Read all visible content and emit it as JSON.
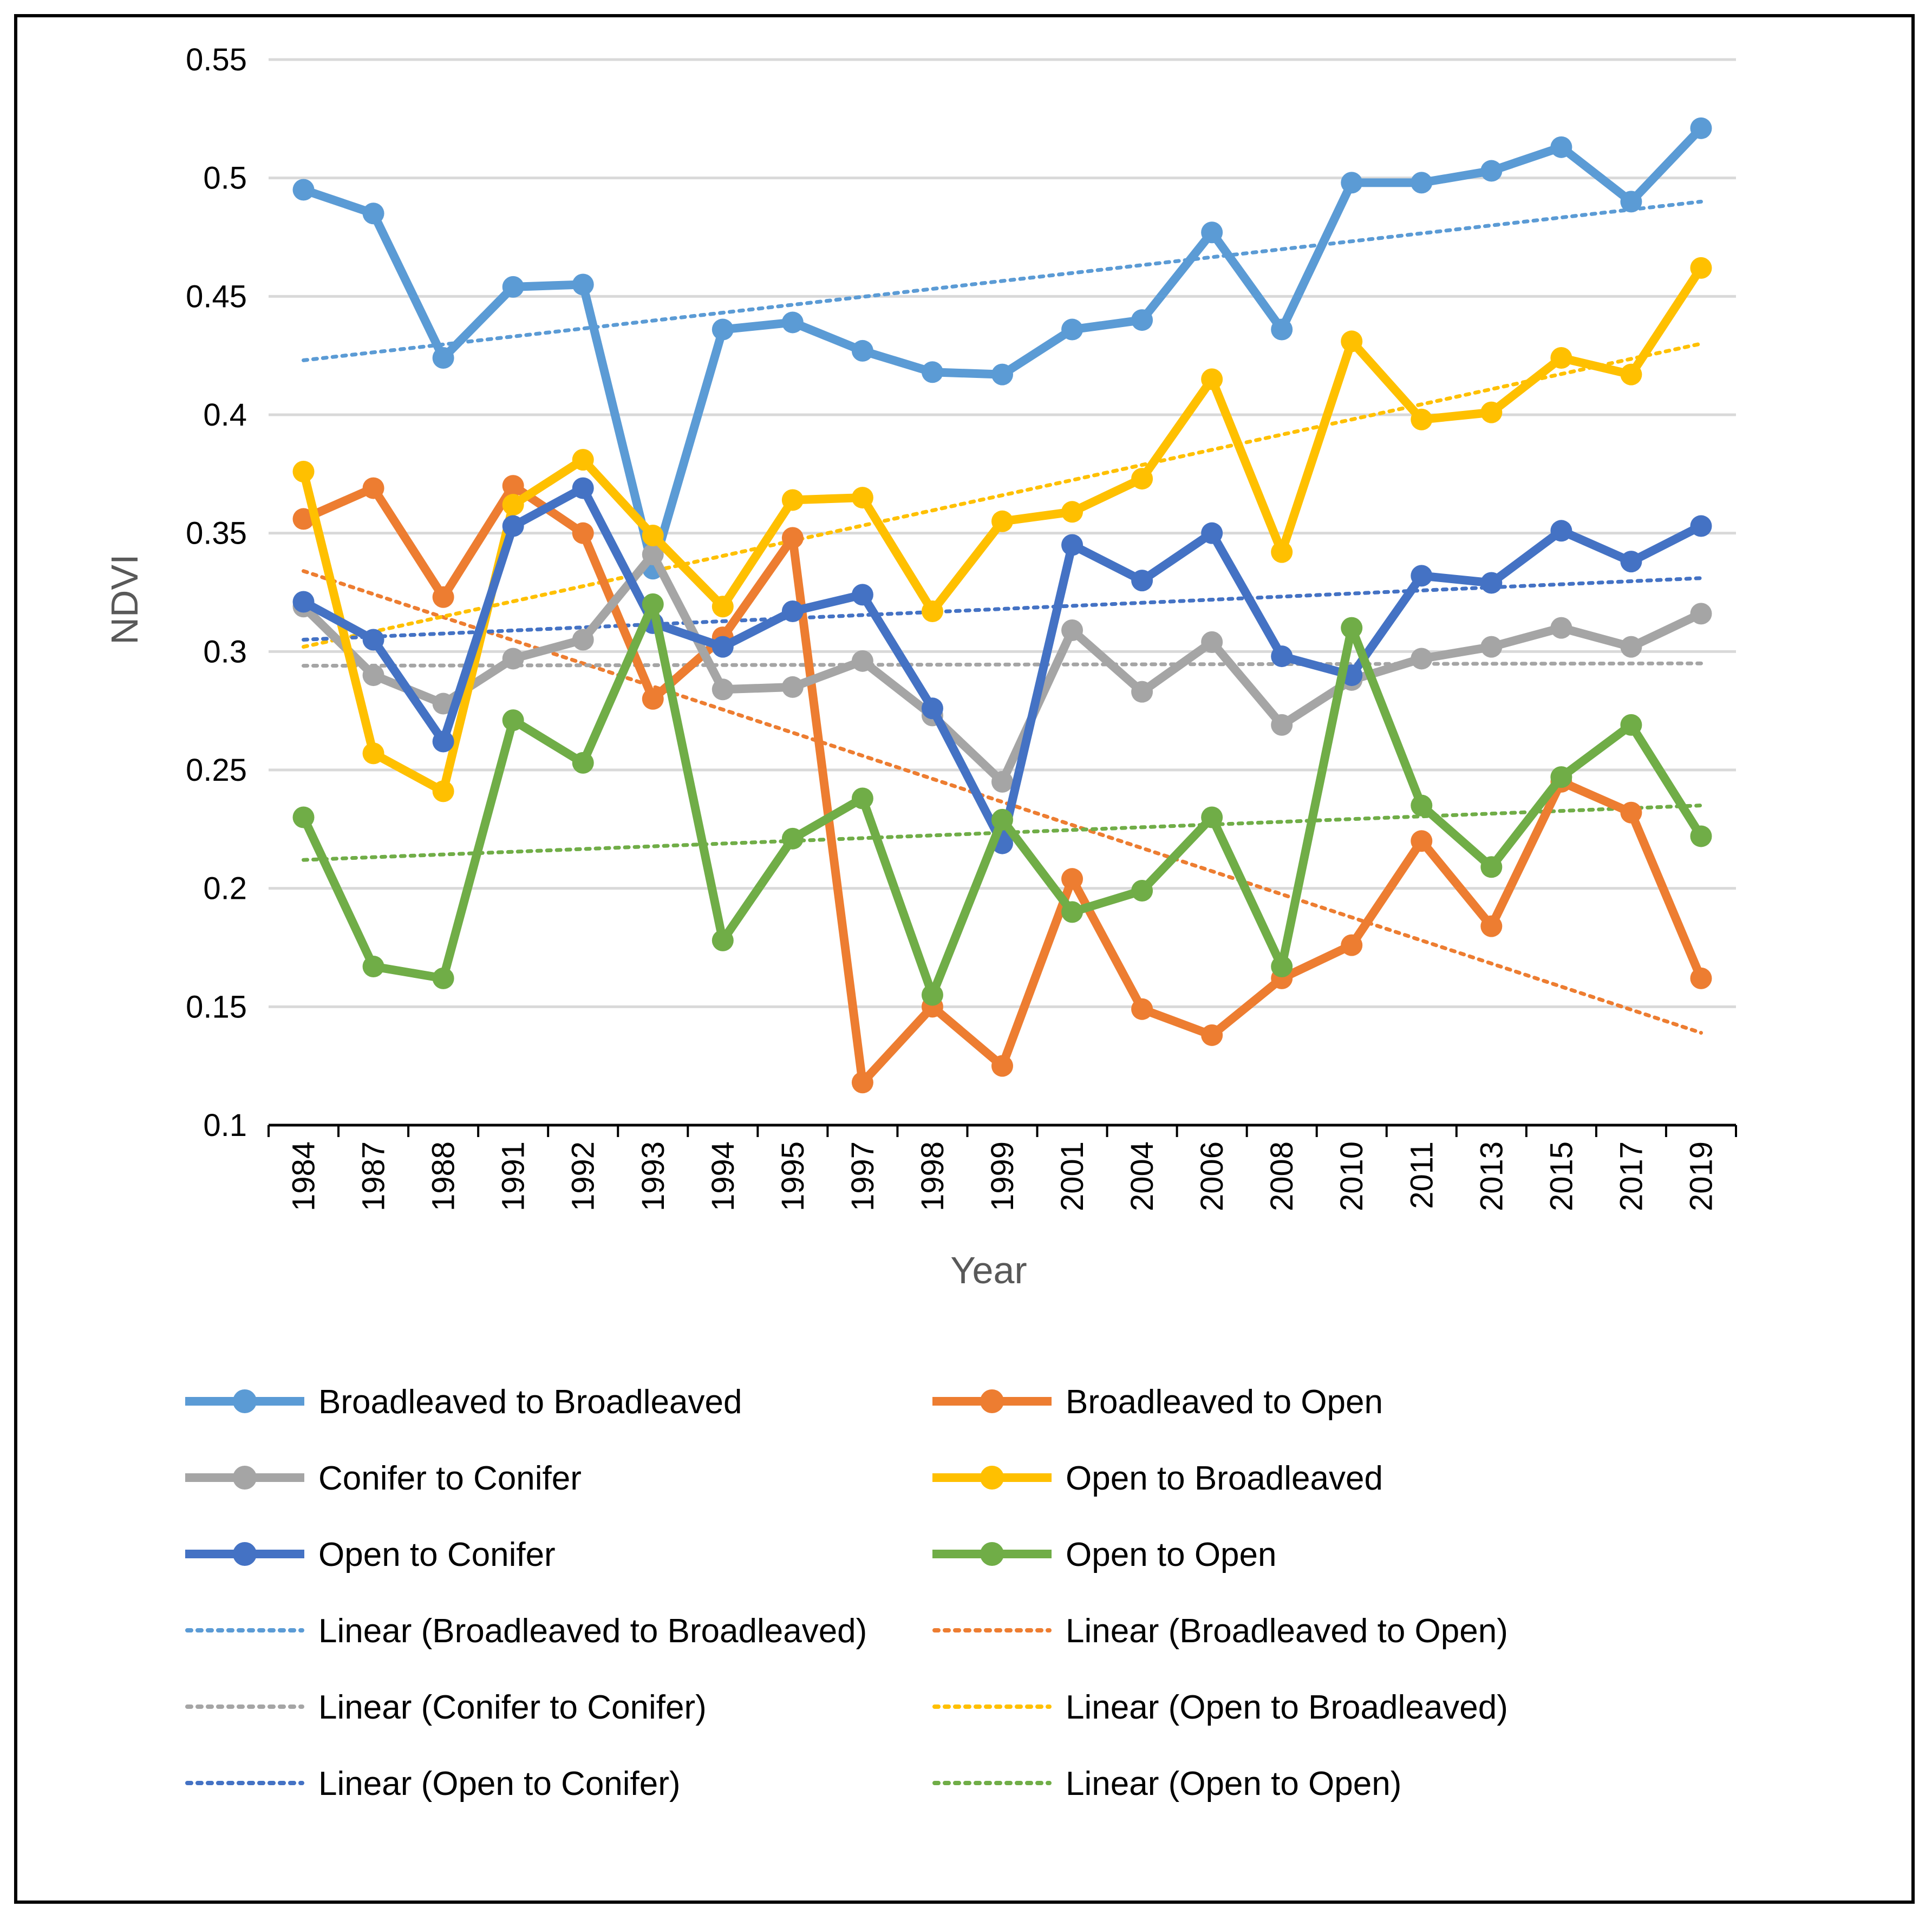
{
  "chart_data": {
    "type": "line",
    "title": "",
    "xlabel": "Year",
    "ylabel": "NDVI",
    "ylim": [
      0.1,
      0.55
    ],
    "yticks": [
      "0.55",
      "0.5",
      "0.45",
      "0.4",
      "0.35",
      "0.3",
      "0.25",
      "0.2",
      "0.15",
      "0.1"
    ],
    "grid": "horizontal",
    "legend_position": "bottom",
    "categories": [
      "1984",
      "1987",
      "1988",
      "1991",
      "1992",
      "1993",
      "1994",
      "1995",
      "1997",
      "1998",
      "1999",
      "2001",
      "2004",
      "2006",
      "2008",
      "2010",
      "2011",
      "2013",
      "2015",
      "2017",
      "2019"
    ],
    "series": [
      {
        "name": "Broadleaved to Broadleaved",
        "color": "#5B9BD5",
        "values": [
          0.495,
          0.485,
          0.424,
          0.454,
          0.455,
          0.335,
          0.436,
          0.439,
          0.427,
          0.418,
          0.417,
          0.436,
          0.44,
          0.477,
          0.436,
          0.498,
          0.498,
          0.503,
          0.513,
          0.49,
          0.521
        ]
      },
      {
        "name": "Broadleaved to Open",
        "color": "#ED7D31",
        "values": [
          0.356,
          0.369,
          0.323,
          0.37,
          0.35,
          0.28,
          0.306,
          0.348,
          0.118,
          0.15,
          0.125,
          0.204,
          0.149,
          0.138,
          0.162,
          0.176,
          0.22,
          0.184,
          0.245,
          0.232,
          0.162
        ]
      },
      {
        "name": "Conifer to Conifer",
        "color": "#A5A5A5",
        "values": [
          0.319,
          0.29,
          0.278,
          0.297,
          0.305,
          0.341,
          0.284,
          0.285,
          0.296,
          0.273,
          0.245,
          0.309,
          0.283,
          0.304,
          0.269,
          0.288,
          0.297,
          0.302,
          0.31,
          0.302,
          0.316
        ]
      },
      {
        "name": "Open to Broadleaved",
        "color": "#FFC000",
        "values": [
          0.376,
          0.257,
          0.241,
          0.362,
          0.381,
          0.349,
          0.319,
          0.364,
          0.365,
          0.317,
          0.355,
          0.359,
          0.373,
          0.415,
          0.342,
          0.431,
          0.398,
          0.401,
          0.424,
          0.417,
          0.462
        ]
      },
      {
        "name": "Open to Conifer",
        "color": "#4472C4",
        "values": [
          0.321,
          0.305,
          0.262,
          0.353,
          0.369,
          0.312,
          0.302,
          0.317,
          0.324,
          0.276,
          0.219,
          0.345,
          0.33,
          0.35,
          0.298,
          0.29,
          0.332,
          0.329,
          0.351,
          0.338,
          0.353
        ]
      },
      {
        "name": "Open to Open",
        "color": "#70AD47",
        "values": [
          0.23,
          0.167,
          0.162,
          0.271,
          0.253,
          0.32,
          0.178,
          0.221,
          0.238,
          0.155,
          0.229,
          0.19,
          0.199,
          0.23,
          0.167,
          0.31,
          0.235,
          0.209,
          0.247,
          0.269,
          0.222
        ]
      }
    ],
    "trendlines": [
      {
        "name": "Linear (Broadleaved to Broadleaved)",
        "color": "#5B9BD5",
        "start": 0.423,
        "end": 0.49
      },
      {
        "name": "Linear (Broadleaved to Open)",
        "color": "#ED7D31",
        "start": 0.334,
        "end": 0.139
      },
      {
        "name": "Linear (Conifer to Conifer)",
        "color": "#A5A5A5",
        "start": 0.294,
        "end": 0.295
      },
      {
        "name": "Linear (Open to Broadleaved)",
        "color": "#FFC000",
        "start": 0.302,
        "end": 0.43
      },
      {
        "name": "Linear (Open to Conifer)",
        "color": "#4472C4",
        "start": 0.305,
        "end": 0.331
      },
      {
        "name": "Linear (Open to Open)",
        "color": "#70AD47",
        "start": 0.212,
        "end": 0.235
      }
    ]
  }
}
